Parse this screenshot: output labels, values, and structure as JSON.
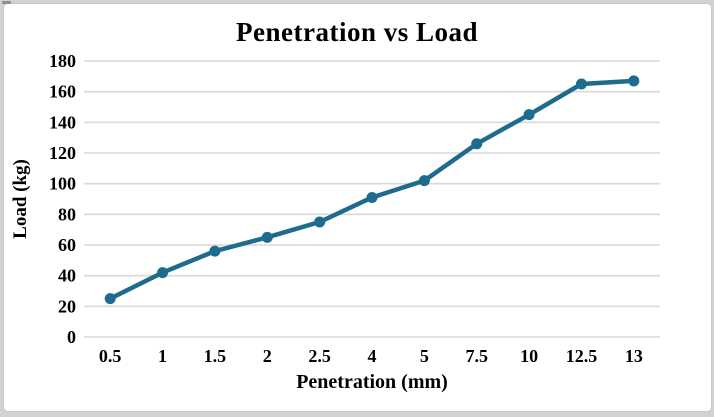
{
  "chart_data": {
    "type": "line",
    "title": "Penetration vs Load",
    "xlabel": "Penetration (mm)",
    "ylabel": "Load (kg)",
    "categories": [
      "0.5",
      "1",
      "1.5",
      "2",
      "2.5",
      "4",
      "5",
      "7.5",
      "10",
      "12.5",
      "13"
    ],
    "values": [
      25,
      42,
      56,
      65,
      75,
      91,
      102,
      126,
      145,
      165,
      167
    ],
    "ylim": [
      0,
      180
    ],
    "y_ticks": [
      0,
      20,
      40,
      60,
      80,
      100,
      120,
      140,
      160,
      180
    ],
    "grid": "horizontal-only",
    "legend": "none",
    "line_color": "#1e6b8d",
    "marker_color": "#1e6b8d",
    "gridline_color": "#d9d9d9",
    "marker_style": "circle"
  }
}
